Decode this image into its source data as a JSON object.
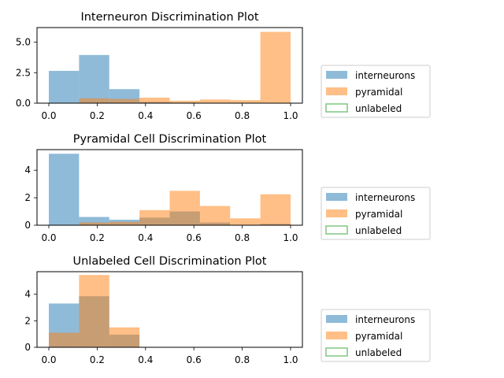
{
  "chart_data": [
    {
      "type": "bar",
      "title": "Interneuron Discrimination Plot",
      "xlim": [
        0,
        1
      ],
      "ylim": [
        0,
        6.2
      ],
      "xticks": [
        "0.0",
        "0.2",
        "0.4",
        "0.6",
        "0.8",
        "1.0"
      ],
      "yticks": [
        "0.0",
        "2.5",
        "5.0"
      ],
      "ytick_values": [
        0,
        2.5,
        5.0
      ],
      "bin_edges": [
        0,
        0.125,
        0.25,
        0.375,
        0.5,
        0.625,
        0.75,
        0.875,
        1.0
      ],
      "series": [
        {
          "name": "interneurons",
          "color": "#1f77b4",
          "values": [
            2.65,
            3.95,
            1.15,
            0.1,
            0.05,
            0,
            0,
            0
          ]
        },
        {
          "name": "pyramidal",
          "color": "#ff7f0e",
          "values": [
            0,
            0.4,
            0.35,
            0.45,
            0.2,
            0.3,
            0.25,
            5.85
          ]
        },
        {
          "name": "unlabeled",
          "color": "#2ca02c",
          "values": [
            0,
            0,
            0,
            0,
            0,
            0,
            0,
            0
          ]
        }
      ],
      "legend_position": "right"
    },
    {
      "type": "bar",
      "title": "Pyramidal Cell Discrimination Plot",
      "xlim": [
        0,
        1
      ],
      "ylim": [
        0,
        5.5
      ],
      "xticks": [
        "0.0",
        "0.2",
        "0.4",
        "0.6",
        "0.8",
        "1.0"
      ],
      "yticks": [
        "0",
        "2",
        "4"
      ],
      "ytick_values": [
        0,
        2,
        4
      ],
      "bin_edges": [
        0,
        0.125,
        0.25,
        0.375,
        0.5,
        0.625,
        0.75,
        0.875,
        1.0
      ],
      "series": [
        {
          "name": "interneurons",
          "color": "#1f77b4",
          "values": [
            5.2,
            0.6,
            0.4,
            0.55,
            1.0,
            0.2,
            0,
            0.1
          ]
        },
        {
          "name": "pyramidal",
          "color": "#ff7f0e",
          "values": [
            0,
            0.2,
            0.25,
            1.1,
            2.5,
            1.4,
            0.5,
            2.25
          ]
        },
        {
          "name": "unlabeled",
          "color": "#2ca02c",
          "values": [
            0,
            0,
            0,
            0,
            0,
            0,
            0,
            0
          ]
        }
      ],
      "legend_position": "right"
    },
    {
      "type": "bar",
      "title": "Unlabeled Cell Discrimination Plot",
      "xlim": [
        0,
        1
      ],
      "ylim": [
        0,
        5.7
      ],
      "xticks": [
        "0.0",
        "0.2",
        "0.4",
        "0.6",
        "0.8",
        "1.0"
      ],
      "yticks": [
        "0",
        "2",
        "4"
      ],
      "ytick_values": [
        0,
        2,
        4
      ],
      "bin_edges": [
        0,
        0.125,
        0.25,
        0.375,
        0.5,
        0.625,
        0.75,
        0.875,
        1.0
      ],
      "series": [
        {
          "name": "interneurons",
          "color": "#1f77b4",
          "values": [
            3.3,
            3.85,
            0.95,
            0,
            0,
            0,
            0,
            0
          ]
        },
        {
          "name": "pyramidal",
          "color": "#ff7f0e",
          "values": [
            1.1,
            5.45,
            1.5,
            0,
            0,
            0,
            0,
            0
          ]
        },
        {
          "name": "unlabeled",
          "color": "#2ca02c",
          "values": [
            0,
            0,
            0,
            0,
            0,
            0,
            0,
            0
          ]
        }
      ],
      "legend_position": "right"
    }
  ]
}
